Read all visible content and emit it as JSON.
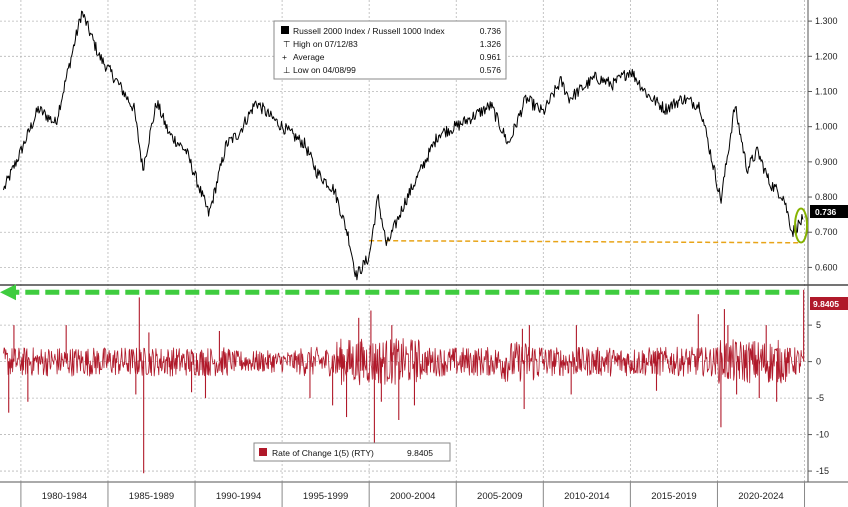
{
  "chart_data": [
    {
      "type": "line",
      "panel": "upper",
      "legend_placement": "top-center",
      "grid": true,
      "ylim": [
        0.55,
        1.36
      ],
      "yticks": [
        "1.300",
        "1.200",
        "1.100",
        "1.000",
        "0.900",
        "0.800",
        "0.700",
        "0.600"
      ],
      "last_value_flag": "0.736",
      "legend": [
        {
          "label": "Russell 2000 Index / Russell 1000 Index",
          "value": "0.736"
        },
        {
          "label": "High on 07/12/83",
          "value": "1.326"
        },
        {
          "label": "Average",
          "value": "0.961"
        },
        {
          "label": "Low on 04/08/99",
          "value": "0.576"
        }
      ],
      "series": [
        {
          "name": "Russell 2000 Index / Russell 1000 Index",
          "color": "#000000",
          "x": [
            1979.0,
            1980.0,
            1981.0,
            1982.0,
            1983.5,
            1984.5,
            1985.5,
            1986.5,
            1987.0,
            1987.8,
            1988.5,
            1989.5,
            1990.8,
            1991.8,
            1992.5,
            1993.5,
            1994.3,
            1995.5,
            1996.3,
            1997.0,
            1998.0,
            1998.8,
            1999.25,
            2000.0,
            2000.5,
            2001.0,
            2002.0,
            2003.0,
            2004.0,
            2005.0,
            2006.0,
            2007.0,
            2008.0,
            2009.0,
            2010.0,
            2011.0,
            2011.5,
            2012.0,
            2013.0,
            2014.0,
            2015.0,
            2016.0,
            2017.0,
            2018.0,
            2019.0,
            2020.2,
            2021.0,
            2021.7,
            2022.3,
            2023.0,
            2023.8,
            2024.3,
            2024.9
          ],
          "y": [
            0.82,
            0.93,
            1.05,
            1.01,
            1.326,
            1.2,
            1.13,
            1.05,
            0.88,
            1.07,
            0.98,
            0.93,
            0.75,
            0.95,
            0.98,
            1.07,
            1.03,
            0.98,
            0.95,
            0.87,
            0.82,
            0.69,
            0.576,
            0.63,
            0.8,
            0.66,
            0.78,
            0.88,
            0.98,
            1.0,
            1.03,
            1.06,
            0.95,
            1.08,
            1.04,
            1.13,
            1.08,
            1.1,
            1.14,
            1.12,
            1.16,
            1.09,
            1.05,
            1.08,
            1.06,
            0.79,
            1.06,
            0.88,
            0.93,
            0.84,
            0.8,
            0.7,
            0.736
          ]
        }
      ],
      "reference_line": {
        "color": "#e8a418",
        "y_start": 0.676,
        "y_end": 0.67,
        "x_start": 2000.0,
        "x_end": 2024.8
      },
      "highlight": {
        "color": "#86b300",
        "x": 2024.8,
        "y": 0.736
      }
    },
    {
      "type": "line",
      "panel": "lower",
      "legend_placement": "bottom-center",
      "grid": true,
      "ylim": [
        -16.5,
        10.5
      ],
      "yticks": [
        "5",
        "0",
        "-5",
        "-10",
        "-15"
      ],
      "last_value_flag": "9.8405",
      "legend": [
        {
          "label": "Rate of Change 1(5) (RTY)",
          "value": "9.8405"
        }
      ],
      "series": [
        {
          "name": "Rate of Change 1(5) (RTY)",
          "color": "#b0192a",
          "spikes": [
            {
              "x": 1979.3,
              "y": -7.0
            },
            {
              "x": 1979.6,
              "y": 5.0
            },
            {
              "x": 1980.4,
              "y": -5.5
            },
            {
              "x": 1982.6,
              "y": 5.0
            },
            {
              "x": 1986.6,
              "y": -4.5
            },
            {
              "x": 1986.8,
              "y": 8.8
            },
            {
              "x": 1987.05,
              "y": -15.3
            },
            {
              "x": 1987.35,
              "y": 4.0
            },
            {
              "x": 1989.8,
              "y": -4.2
            },
            {
              "x": 1990.6,
              "y": -5.0
            },
            {
              "x": 1991.4,
              "y": 4.2
            },
            {
              "x": 1996.6,
              "y": -5.0
            },
            {
              "x": 1997.9,
              "y": -6.0
            },
            {
              "x": 1998.7,
              "y": -7.6
            },
            {
              "x": 1999.4,
              "y": 6.0
            },
            {
              "x": 2000.1,
              "y": 7.0
            },
            {
              "x": 2000.3,
              "y": -11.2
            },
            {
              "x": 2000.7,
              "y": -5.5
            },
            {
              "x": 2001.3,
              "y": 5.0
            },
            {
              "x": 2001.7,
              "y": -8.0
            },
            {
              "x": 2002.6,
              "y": -6.0
            },
            {
              "x": 2008.8,
              "y": 4.5
            },
            {
              "x": 2008.9,
              "y": -6.5
            },
            {
              "x": 2009.2,
              "y": 5.0
            },
            {
              "x": 2011.6,
              "y": -4.5
            },
            {
              "x": 2011.9,
              "y": 5.0
            },
            {
              "x": 2016.5,
              "y": -4.0
            },
            {
              "x": 2018.9,
              "y": 6.5
            },
            {
              "x": 2020.2,
              "y": -9.0
            },
            {
              "x": 2020.4,
              "y": 7.2
            },
            {
              "x": 2020.6,
              "y": 5.0
            },
            {
              "x": 2021.1,
              "y": -4.5
            },
            {
              "x": 2022.4,
              "y": -5.0
            },
            {
              "x": 2022.8,
              "y": 5.0
            },
            {
              "x": 2023.4,
              "y": -5.5
            },
            {
              "x": 2024.95,
              "y": 9.8405
            }
          ]
        }
      ],
      "arrow": {
        "color": "#3fcc3f",
        "direction": "left",
        "y": 9.5,
        "x_start": 2024.7,
        "x_end": 1978.8
      }
    }
  ],
  "x_axis": {
    "categories": [
      "1980-1984",
      "1985-1989",
      "1990-1994",
      "1995-1999",
      "2000-2004",
      "2005-2009",
      "2010-2014",
      "2015-2019",
      "2020-2024"
    ]
  },
  "colors": {
    "background": "#ffffff",
    "grid": "#b7b7b7",
    "ratio_line": "#000000",
    "roc_line": "#b0192a",
    "flag_upper": "#000000",
    "flag_lower": "#b0192a",
    "reference_line": "#e8a418",
    "highlight": "#86b300",
    "arrow": "#3fcc3f"
  }
}
